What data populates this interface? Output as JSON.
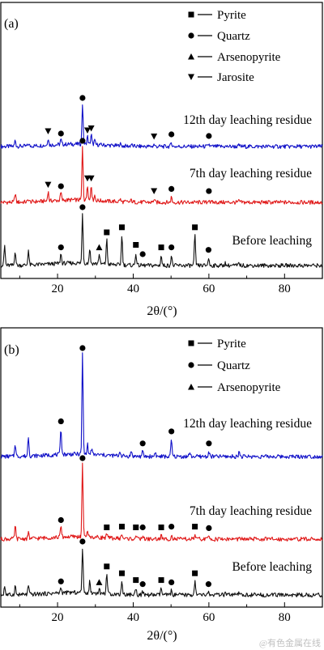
{
  "chart_data": [
    {
      "type": "line",
      "panel_label": "(a)",
      "xlabel": "2θ/(°)",
      "x_ticks": [
        20,
        40,
        60,
        80
      ],
      "xlim": [
        5,
        90
      ],
      "legend": [
        {
          "marker": "square",
          "label": "Pyrite"
        },
        {
          "marker": "circle",
          "label": "Quartz"
        },
        {
          "marker": "triangle-up",
          "label": "Arsenopyrite"
        },
        {
          "marker": "triangle-down",
          "label": "Jarosite"
        }
      ],
      "series": [
        {
          "name": "12th day leaching residue",
          "color": "#1010c8",
          "peaks": [
            [
              8.8,
              0.15
            ],
            [
              12.3,
              0.05
            ],
            [
              17.5,
              0.18
            ],
            [
              20.9,
              0.12
            ],
            [
              26.6,
              1.0
            ],
            [
              27.9,
              0.2
            ],
            [
              28.9,
              0.25
            ],
            [
              29.8,
              0.1
            ],
            [
              36.5,
              0.06
            ],
            [
              39.5,
              0.05
            ],
            [
              45.5,
              0.05
            ],
            [
              50.1,
              0.1
            ],
            [
              60.0,
              0.06
            ],
            [
              68.0,
              0.03
            ]
          ],
          "markers": [
            {
              "x": 26.6,
              "m": "circle"
            },
            {
              "x": 20.9,
              "m": "circle"
            },
            {
              "x": 17.5,
              "m": "triangle-down"
            },
            {
              "x": 27.9,
              "m": "triangle-down"
            },
            {
              "x": 28.9,
              "m": "triangle-down"
            },
            {
              "x": 45.5,
              "m": "triangle-down"
            },
            {
              "x": 50.1,
              "m": "circle"
            },
            {
              "x": 60.0,
              "m": "circle"
            }
          ]
        },
        {
          "name": "7th day leaching residue",
          "color": "#e01818",
          "peaks": [
            [
              8.8,
              0.17
            ],
            [
              12.3,
              0.05
            ],
            [
              17.5,
              0.18
            ],
            [
              20.9,
              0.15
            ],
            [
              26.6,
              1.0
            ],
            [
              27.9,
              0.3
            ],
            [
              28.9,
              0.3
            ],
            [
              29.8,
              0.1
            ],
            [
              36.5,
              0.05
            ],
            [
              39.5,
              0.04
            ],
            [
              45.5,
              0.06
            ],
            [
              50.1,
              0.1
            ],
            [
              60.0,
              0.06
            ],
            [
              68.0,
              0.03
            ]
          ],
          "markers": [
            {
              "x": 26.6,
              "m": "circle"
            },
            {
              "x": 20.9,
              "m": "circle"
            },
            {
              "x": 17.5,
              "m": "triangle-down"
            },
            {
              "x": 27.9,
              "m": "triangle-down"
            },
            {
              "x": 28.9,
              "m": "triangle-down"
            },
            {
              "x": 45.5,
              "m": "triangle-down"
            },
            {
              "x": 50.1,
              "m": "circle"
            },
            {
              "x": 60.0,
              "m": "circle"
            }
          ]
        },
        {
          "name": "Before leaching",
          "color": "#111111",
          "peaks": [
            [
              6.0,
              0.4
            ],
            [
              8.8,
              0.3
            ],
            [
              12.3,
              0.3
            ],
            [
              20.9,
              0.2
            ],
            [
              26.6,
              1.0
            ],
            [
              28.5,
              0.3
            ],
            [
              31.0,
              0.2
            ],
            [
              33.0,
              0.5
            ],
            [
              37.0,
              0.6
            ],
            [
              40.7,
              0.25
            ],
            [
              47.4,
              0.2
            ],
            [
              50.1,
              0.2
            ],
            [
              56.3,
              0.6
            ],
            [
              59.9,
              0.15
            ],
            [
              64.3,
              0.05
            ],
            [
              68.0,
              0.05
            ]
          ],
          "markers": [
            {
              "x": 26.6,
              "m": "circle"
            },
            {
              "x": 20.9,
              "m": "circle"
            },
            {
              "x": 31.0,
              "m": "triangle-up"
            },
            {
              "x": 33.0,
              "m": "square"
            },
            {
              "x": 37.0,
              "m": "square"
            },
            {
              "x": 40.7,
              "m": "square"
            },
            {
              "x": 42.5,
              "m": "circle"
            },
            {
              "x": 47.4,
              "m": "square"
            },
            {
              "x": 50.1,
              "m": "circle"
            },
            {
              "x": 56.3,
              "m": "square"
            },
            {
              "x": 59.9,
              "m": "circle"
            }
          ]
        }
      ]
    },
    {
      "type": "line",
      "panel_label": "(b)",
      "xlabel": "2θ/(°)",
      "x_ticks": [
        20,
        40,
        60,
        80
      ],
      "xlim": [
        5,
        90
      ],
      "legend": [
        {
          "marker": "square",
          "label": "Pyrite"
        },
        {
          "marker": "circle",
          "label": "Quartz"
        },
        {
          "marker": "triangle-up",
          "label": "Arsenopyrite"
        }
      ],
      "series": [
        {
          "name": "12th day leaching residue",
          "color": "#1010c8",
          "peaks": [
            [
              8.8,
              0.13
            ],
            [
              12.3,
              0.2
            ],
            [
              20.9,
              0.27
            ],
            [
              26.6,
              1.0
            ],
            [
              27.9,
              0.1
            ],
            [
              29.0,
              0.06
            ],
            [
              36.5,
              0.05
            ],
            [
              39.5,
              0.05
            ],
            [
              42.5,
              0.05
            ],
            [
              45.8,
              0.05
            ],
            [
              50.1,
              0.17
            ],
            [
              54.9,
              0.04
            ],
            [
              60.0,
              0.05
            ],
            [
              68.0,
              0.05
            ]
          ],
          "markers": [
            {
              "x": 26.6,
              "m": "circle"
            },
            {
              "x": 20.9,
              "m": "circle"
            },
            {
              "x": 42.5,
              "m": "circle"
            },
            {
              "x": 50.1,
              "m": "circle"
            },
            {
              "x": 60.0,
              "m": "circle"
            }
          ]
        },
        {
          "name": "7th day leaching residue",
          "color": "#e01818",
          "peaks": [
            [
              8.8,
              0.18
            ],
            [
              12.3,
              0.08
            ],
            [
              20.9,
              0.15
            ],
            [
              26.6,
              1.0
            ],
            [
              27.9,
              0.1
            ],
            [
              33.0,
              0.05
            ],
            [
              37.0,
              0.06
            ],
            [
              40.7,
              0.05
            ],
            [
              42.5,
              0.05
            ],
            [
              47.4,
              0.05
            ],
            [
              50.1,
              0.06
            ],
            [
              56.3,
              0.06
            ],
            [
              60.0,
              0.04
            ]
          ],
          "markers": [
            {
              "x": 26.6,
              "m": "circle"
            },
            {
              "x": 20.9,
              "m": "circle"
            },
            {
              "x": 33.0,
              "m": "square"
            },
            {
              "x": 37.0,
              "m": "square"
            },
            {
              "x": 40.7,
              "m": "square"
            },
            {
              "x": 42.5,
              "m": "circle"
            },
            {
              "x": 47.4,
              "m": "square"
            },
            {
              "x": 50.1,
              "m": "circle"
            },
            {
              "x": 56.3,
              "m": "square"
            },
            {
              "x": 60.0,
              "m": "circle"
            }
          ]
        },
        {
          "name": "Before leaching",
          "color": "#111111",
          "peaks": [
            [
              6.0,
              0.2
            ],
            [
              8.8,
              0.2
            ],
            [
              12.3,
              0.2
            ],
            [
              20.9,
              0.12
            ],
            [
              26.6,
              1.0
            ],
            [
              28.5,
              0.25
            ],
            [
              31.0,
              0.1
            ],
            [
              33.0,
              0.45
            ],
            [
              37.0,
              0.3
            ],
            [
              40.7,
              0.15
            ],
            [
              42.5,
              0.06
            ],
            [
              47.4,
              0.15
            ],
            [
              50.1,
              0.1
            ],
            [
              56.3,
              0.3
            ],
            [
              59.9,
              0.06
            ],
            [
              64.3,
              0.04
            ],
            [
              68.0,
              0.04
            ]
          ],
          "markers": [
            {
              "x": 26.6,
              "m": "circle"
            },
            {
              "x": 20.9,
              "m": "circle"
            },
            {
              "x": 31.0,
              "m": "triangle-up"
            },
            {
              "x": 33.0,
              "m": "square"
            },
            {
              "x": 37.0,
              "m": "square"
            },
            {
              "x": 40.7,
              "m": "square"
            },
            {
              "x": 42.5,
              "m": "circle"
            },
            {
              "x": 47.4,
              "m": "square"
            },
            {
              "x": 50.1,
              "m": "circle"
            },
            {
              "x": 56.3,
              "m": "square"
            },
            {
              "x": 59.9,
              "m": "circle"
            }
          ]
        }
      ]
    }
  ],
  "watermark": "@有色金属在线"
}
